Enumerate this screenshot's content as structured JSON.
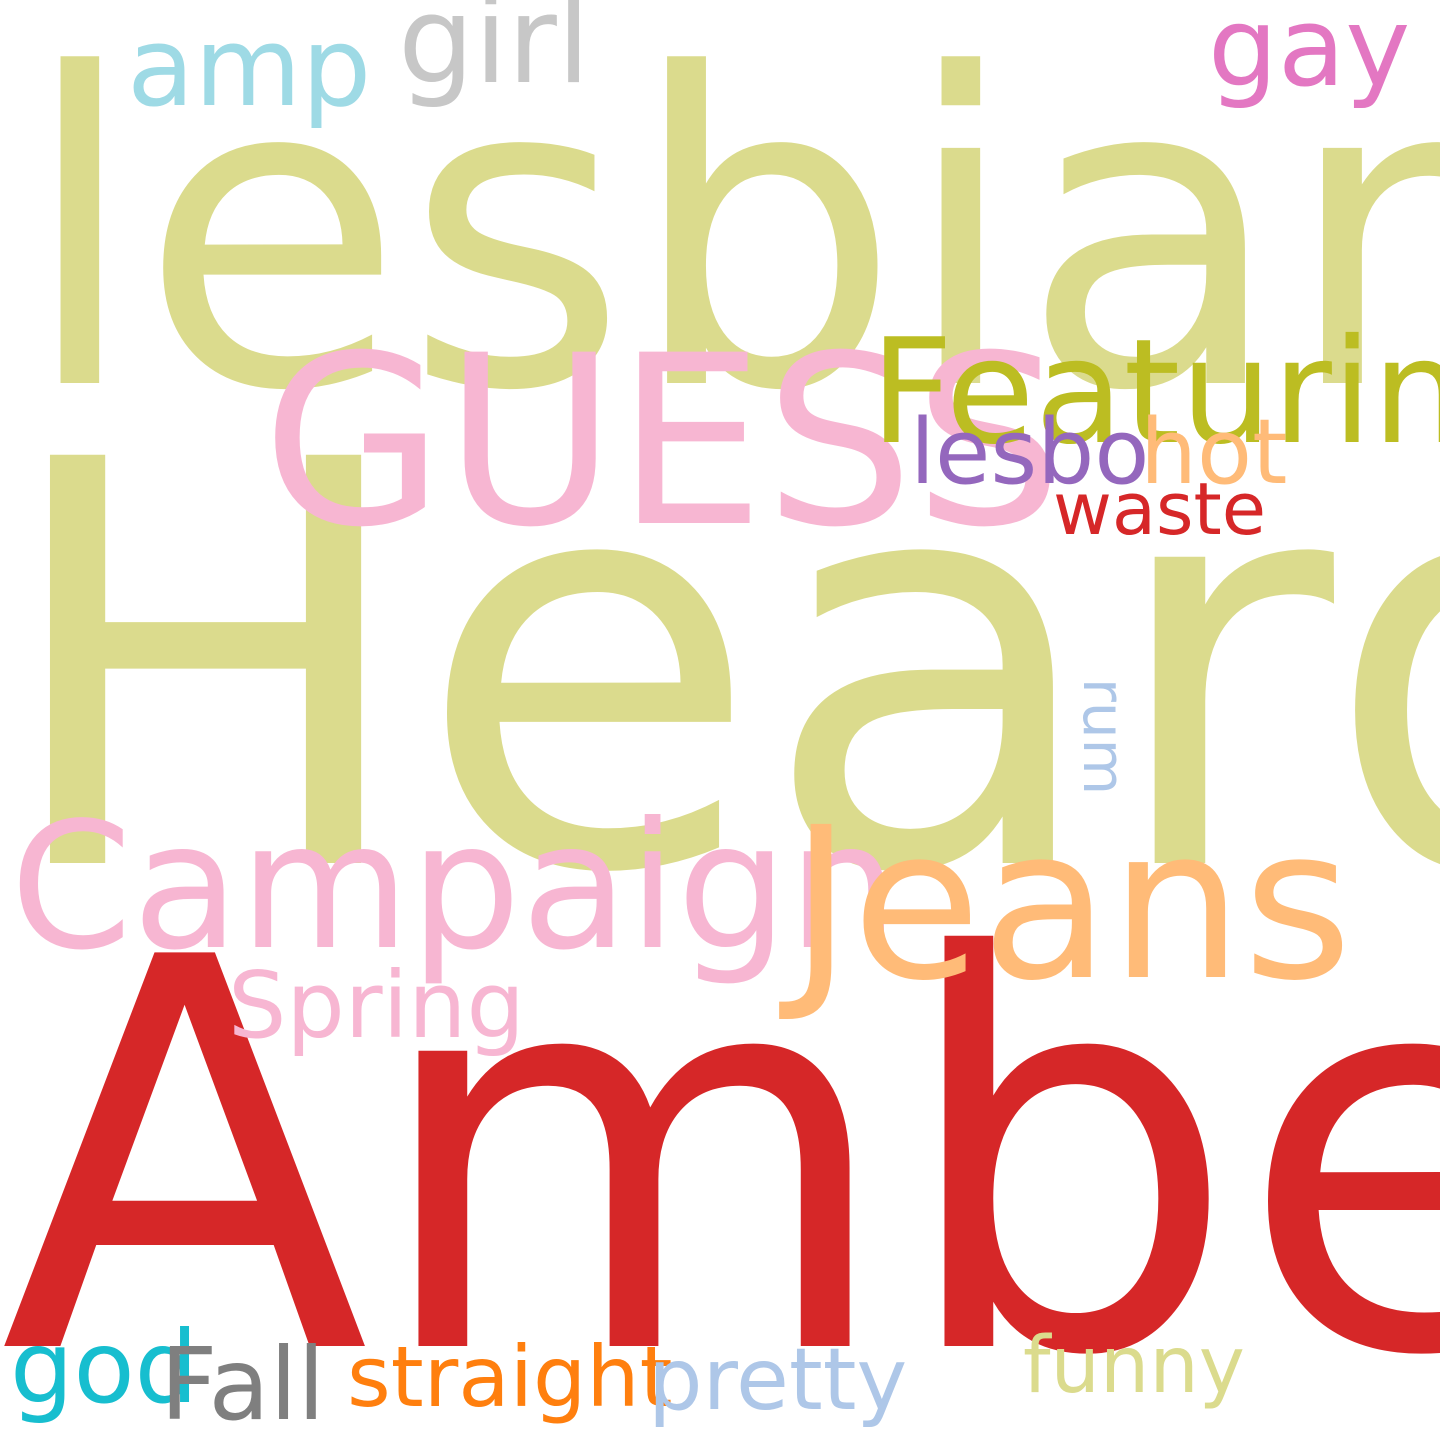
{
  "word_cloud": {
    "background": "#ffffff",
    "words": [
      {
        "text": "lesbian",
        "color": "#dbdb8d"
      },
      {
        "text": "Heard",
        "color": "#dbdb8d"
      },
      {
        "text": "Amber",
        "color": "#d62728"
      },
      {
        "text": "GUESS",
        "color": "#f7b6d2"
      },
      {
        "text": "Featuring",
        "color": "#bcbd22"
      },
      {
        "text": "Campaign",
        "color": "#f7b6d2"
      },
      {
        "text": "Jeans",
        "color": "#ffbb78"
      },
      {
        "text": "girl",
        "color": "#c7c7c7"
      },
      {
        "text": "amp",
        "color": "#9edae5"
      },
      {
        "text": "gay",
        "color": "#e377c2"
      },
      {
        "text": "lesbo",
        "color": "#9467bd"
      },
      {
        "text": "hot",
        "color": "#ffbb78"
      },
      {
        "text": "waste",
        "color": "#d62728"
      },
      {
        "text": "rum",
        "color": "#aec7e8"
      },
      {
        "text": "Spring",
        "color": "#f7b6d2"
      },
      {
        "text": "god",
        "color": "#17becf"
      },
      {
        "text": "Fall",
        "color": "#7f7f7f"
      },
      {
        "text": "straight",
        "color": "#ff7f0e"
      },
      {
        "text": "pretty",
        "color": "#aec7e8"
      },
      {
        "text": "funny",
        "color": "#dbdb8d"
      }
    ]
  }
}
